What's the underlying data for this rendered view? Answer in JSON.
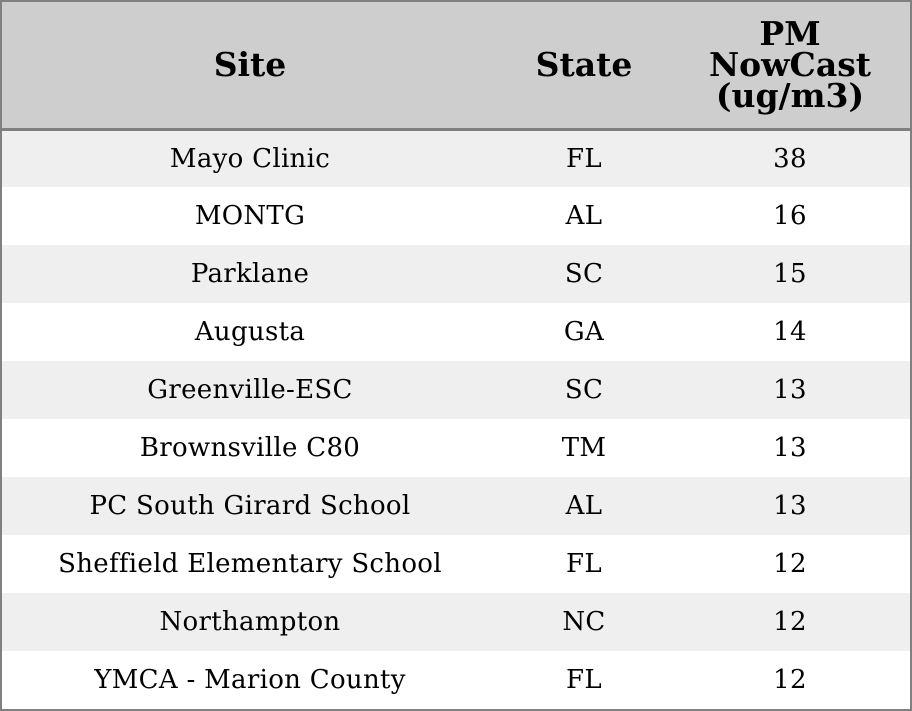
{
  "chart_data": {
    "type": "table",
    "columns": [
      "Site",
      "State",
      "PM NowCast (ug/m3)"
    ],
    "header_lines": {
      "site": "Site",
      "state": "State",
      "pm": [
        "PM",
        "NowCast",
        "(ug/m3)"
      ]
    },
    "rows": [
      {
        "site": "Mayo Clinic",
        "state": "FL",
        "pm": "38"
      },
      {
        "site": "MONTG",
        "state": "AL",
        "pm": "16"
      },
      {
        "site": "Parklane",
        "state": "SC",
        "pm": "15"
      },
      {
        "site": "Augusta",
        "state": "GA",
        "pm": "14"
      },
      {
        "site": "Greenville-ESC",
        "state": "SC",
        "pm": "13"
      },
      {
        "site": "Brownsville C80",
        "state": "TM",
        "pm": "13"
      },
      {
        "site": "PC South Girard School",
        "state": "AL",
        "pm": "13"
      },
      {
        "site": "Sheffield Elementary School",
        "state": "FL",
        "pm": "12"
      },
      {
        "site": "Northampton",
        "state": "NC",
        "pm": "12"
      },
      {
        "site": "YMCA - Marion County",
        "state": "FL",
        "pm": "12"
      }
    ],
    "colors": {
      "header_background": "#cecece",
      "row_stripe": "#efefef",
      "row_plain": "#ffffff",
      "border": "#808080"
    }
  }
}
